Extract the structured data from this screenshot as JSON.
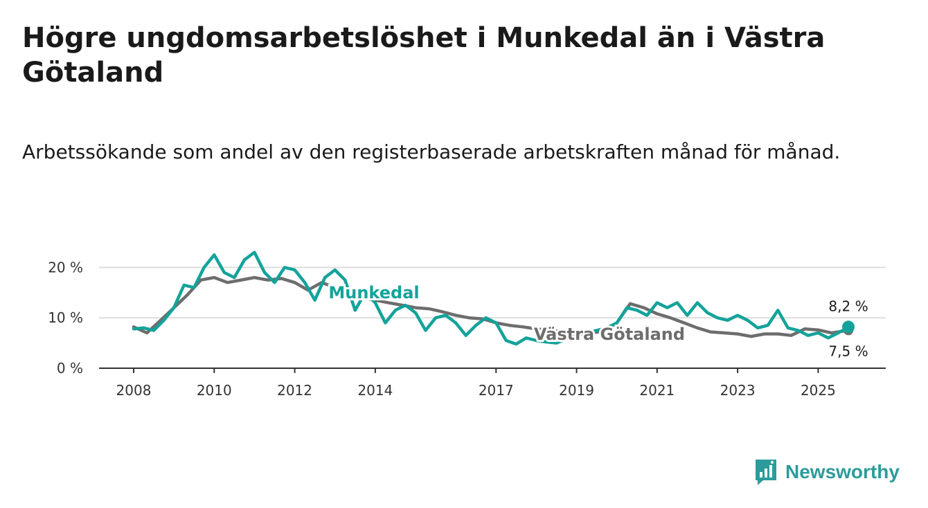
{
  "title": "Högre ungdomsarbetslöshet i Munkedal än i Västra Götaland",
  "subtitle": "Arbetssökande som andel av den registerbaserade arbetskraften månad för månad.",
  "brand": {
    "name": "Newsworthy",
    "color": "#2c9c9a"
  },
  "chart_data": {
    "type": "line",
    "title": "Högre ungdomsarbetslöshet i Munkedal än i Västra Götaland",
    "xlabel": "",
    "ylabel": "",
    "xlim": [
      2008,
      2025.75
    ],
    "ylim": [
      0,
      25
    ],
    "y_ticks": [
      0,
      10,
      20
    ],
    "y_tick_labels": [
      "0 %",
      "10 %",
      "20 %"
    ],
    "x_ticks": [
      2008,
      2010,
      2012,
      2014,
      2017,
      2019,
      2021,
      2023,
      2025
    ],
    "x_tick_labels": [
      "2008",
      "2010",
      "2012",
      "2014",
      "2017",
      "2019",
      "2021",
      "2023",
      "2025"
    ],
    "grid": true,
    "series": [
      {
        "name": "Västra Götaland",
        "label": "Västra Götaland",
        "color": "#6d6d6d",
        "end_label": "7,5 %",
        "x": [
          2008.0,
          2008.33,
          2008.67,
          2009.0,
          2009.33,
          2009.67,
          2010.0,
          2010.33,
          2010.67,
          2011.0,
          2011.33,
          2011.67,
          2012.0,
          2012.33,
          2012.67,
          2013.0,
          2013.33,
          2013.67,
          2014.0,
          2014.33,
          2014.67,
          2015.0,
          2015.33,
          2015.67,
          2016.0,
          2016.33,
          2016.67,
          2017.0,
          2017.33,
          2017.67,
          2018.0,
          2018.33,
          2018.67,
          2019.0,
          2019.33,
          2019.67,
          2020.0,
          2020.33,
          2020.67,
          2021.0,
          2021.33,
          2021.67,
          2022.0,
          2022.33,
          2022.67,
          2023.0,
          2023.33,
          2023.67,
          2024.0,
          2024.33,
          2024.67,
          2025.0,
          2025.33,
          2025.75
        ],
        "values": [
          8.2,
          7.0,
          9.5,
          12.0,
          14.5,
          17.5,
          18.0,
          17.0,
          17.5,
          18.0,
          17.5,
          17.8,
          17.0,
          15.5,
          17.0,
          16.0,
          14.5,
          14.0,
          13.5,
          13.0,
          12.5,
          12.0,
          11.8,
          11.2,
          10.5,
          10.0,
          9.8,
          9.0,
          8.5,
          8.2,
          7.8,
          7.5,
          7.3,
          7.2,
          7.0,
          7.3,
          9.0,
          12.8,
          12.0,
          10.8,
          10.0,
          9.0,
          8.0,
          7.2,
          7.0,
          6.8,
          6.3,
          6.8,
          6.8,
          6.5,
          7.8,
          7.6,
          7.0,
          7.5
        ]
      },
      {
        "name": "Munkedal",
        "label": "Munkedal",
        "color": "#13a39a",
        "end_label": "8,2 %",
        "x": [
          2008.0,
          2008.25,
          2008.5,
          2008.75,
          2009.0,
          2009.25,
          2009.5,
          2009.75,
          2010.0,
          2010.25,
          2010.5,
          2010.75,
          2011.0,
          2011.25,
          2011.5,
          2011.75,
          2012.0,
          2012.25,
          2012.5,
          2012.75,
          2013.0,
          2013.25,
          2013.5,
          2013.75,
          2014.0,
          2014.25,
          2014.5,
          2014.75,
          2015.0,
          2015.25,
          2015.5,
          2015.75,
          2016.0,
          2016.25,
          2016.5,
          2016.75,
          2017.0,
          2017.25,
          2017.5,
          2017.75,
          2018.0,
          2018.25,
          2018.5,
          2018.75,
          2019.0,
          2019.25,
          2019.5,
          2019.75,
          2020.0,
          2020.25,
          2020.5,
          2020.75,
          2021.0,
          2021.25,
          2021.5,
          2021.75,
          2022.0,
          2022.25,
          2022.5,
          2022.75,
          2023.0,
          2023.25,
          2023.5,
          2023.75,
          2024.0,
          2024.25,
          2024.5,
          2024.75,
          2025.0,
          2025.25,
          2025.5,
          2025.75
        ],
        "values": [
          7.8,
          8.0,
          7.5,
          9.5,
          12.0,
          16.5,
          16.0,
          20.0,
          22.5,
          19.0,
          18.0,
          21.5,
          23.0,
          19.0,
          17.0,
          20.0,
          19.5,
          17.0,
          13.5,
          18.0,
          19.5,
          17.5,
          11.5,
          15.0,
          13.0,
          9.0,
          11.5,
          12.5,
          11.0,
          7.5,
          10.0,
          10.5,
          9.0,
          6.5,
          8.5,
          10.0,
          9.0,
          5.5,
          4.8,
          6.0,
          5.5,
          5.2,
          5.0,
          5.8,
          6.5,
          7.0,
          7.5,
          8.0,
          9.0,
          12.0,
          11.5,
          10.5,
          13.0,
          12.0,
          13.0,
          10.5,
          13.0,
          11.0,
          10.0,
          9.5,
          10.5,
          9.5,
          8.0,
          8.5,
          11.5,
          8.0,
          7.5,
          6.5,
          7.0,
          6.0,
          7.0,
          8.2
        ]
      }
    ]
  }
}
